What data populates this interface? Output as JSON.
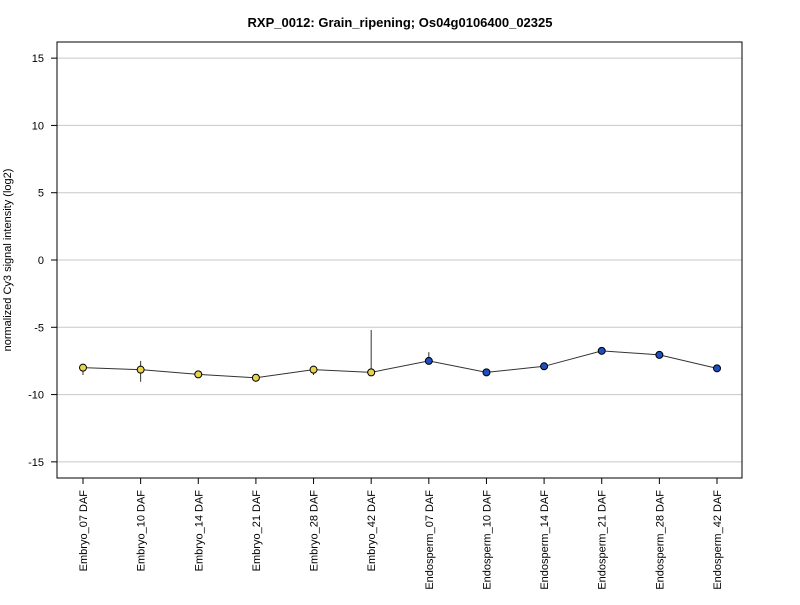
{
  "chart_data": {
    "type": "line",
    "title": "RXP_0012: Grain_ripening; Os04g0106400_02325",
    "xlabel": "",
    "ylabel": "normalized Cy3 signal intensity (log2)",
    "ylim": [
      -16.2,
      16.2
    ],
    "yticks": [
      -15,
      -10,
      -5,
      0,
      5,
      10,
      15
    ],
    "grid": true,
    "categories": [
      "Embryo_07 DAF",
      "Embryo_10 DAF",
      "Embryo_14 DAF",
      "Embryo_21 DAF",
      "Embryo_28 DAF",
      "Embryo_42 DAF",
      "Endosperm_07 DAF",
      "Endosperm_10 DAF",
      "Endosperm_14 DAF",
      "Endosperm_21 DAF",
      "Endosperm_28 DAF",
      "Endosperm_42 DAF"
    ],
    "values": [
      -8.0,
      -8.15,
      -8.5,
      -8.75,
      -8.15,
      -8.35,
      -7.5,
      -8.35,
      -7.9,
      -6.75,
      -7.05,
      -8.05
    ],
    "error_low": [
      -8.55,
      -9.05,
      -8.6,
      -8.8,
      -8.55,
      -8.45,
      -7.65,
      -8.6,
      -8.0,
      -6.8,
      -7.3,
      -8.2
    ],
    "error_high": [
      -7.9,
      -7.5,
      -8.4,
      -8.7,
      -7.9,
      -5.2,
      -6.85,
      -8.1,
      -7.8,
      -6.65,
      -6.95,
      -7.95
    ],
    "point_colors": [
      "#e8d44a",
      "#e8d44a",
      "#e8d44a",
      "#e8d44a",
      "#e8d44a",
      "#e8d44a",
      "#1f4fbf",
      "#1f4fbf",
      "#1f4fbf",
      "#1f4fbf",
      "#1f4fbf",
      "#1f4fbf"
    ],
    "line_color": "#333333",
    "grid_color": "#c8c8c8"
  }
}
